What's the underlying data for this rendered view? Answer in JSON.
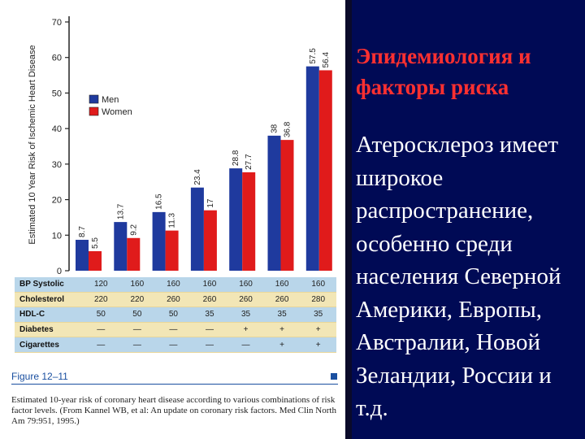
{
  "slide": {
    "title": "Эпидемиология и факторы риска",
    "body": "Атеросклероз имеет широкое распространение, особенно среди населения Северной Америки, Европы, Австралии, Новой Зеландии, России и т.д."
  },
  "figure": {
    "label": "Figure 12–11",
    "caption": "Estimated 10-year risk of coronary heart disease according to various combinations of risk factor levels. (From Kannel WB, et al: An update on coronary risk factors. Med Clin North Am 79:951, 1995.)"
  },
  "table": {
    "rows": [
      {
        "label": "BP Systolic",
        "values": [
          "120",
          "160",
          "160",
          "160",
          "160",
          "160",
          "160"
        ]
      },
      {
        "label": "Cholesterol",
        "values": [
          "220",
          "220",
          "260",
          "260",
          "260",
          "260",
          "280"
        ]
      },
      {
        "label": "HDL-C",
        "values": [
          "50",
          "50",
          "50",
          "35",
          "35",
          "35",
          "35"
        ]
      },
      {
        "label": "Diabetes",
        "values": [
          "—",
          "—",
          "—",
          "—",
          "+",
          "+",
          "+"
        ]
      },
      {
        "label": "Cigarettes",
        "values": [
          "—",
          "—",
          "—",
          "—",
          "—",
          "+",
          "+"
        ]
      }
    ]
  },
  "chart_data": {
    "type": "bar",
    "ylabel": "Estimated 10 Year Risk of Ischemic Heart Disease",
    "ylim": [
      0,
      70
    ],
    "yticks": [
      0,
      10,
      20,
      30,
      40,
      50,
      60,
      70
    ],
    "legend_position": "upper-left",
    "series": [
      {
        "name": "Men",
        "color": "#1f3a9e",
        "values": [
          8.7,
          13.7,
          16.5,
          23.4,
          28.8,
          38,
          57.5
        ]
      },
      {
        "name": "Women",
        "color": "#e01b1b",
        "values": [
          5.5,
          9.2,
          11.3,
          17,
          27.7,
          36.8,
          56.4
        ]
      }
    ],
    "grid": false
  }
}
